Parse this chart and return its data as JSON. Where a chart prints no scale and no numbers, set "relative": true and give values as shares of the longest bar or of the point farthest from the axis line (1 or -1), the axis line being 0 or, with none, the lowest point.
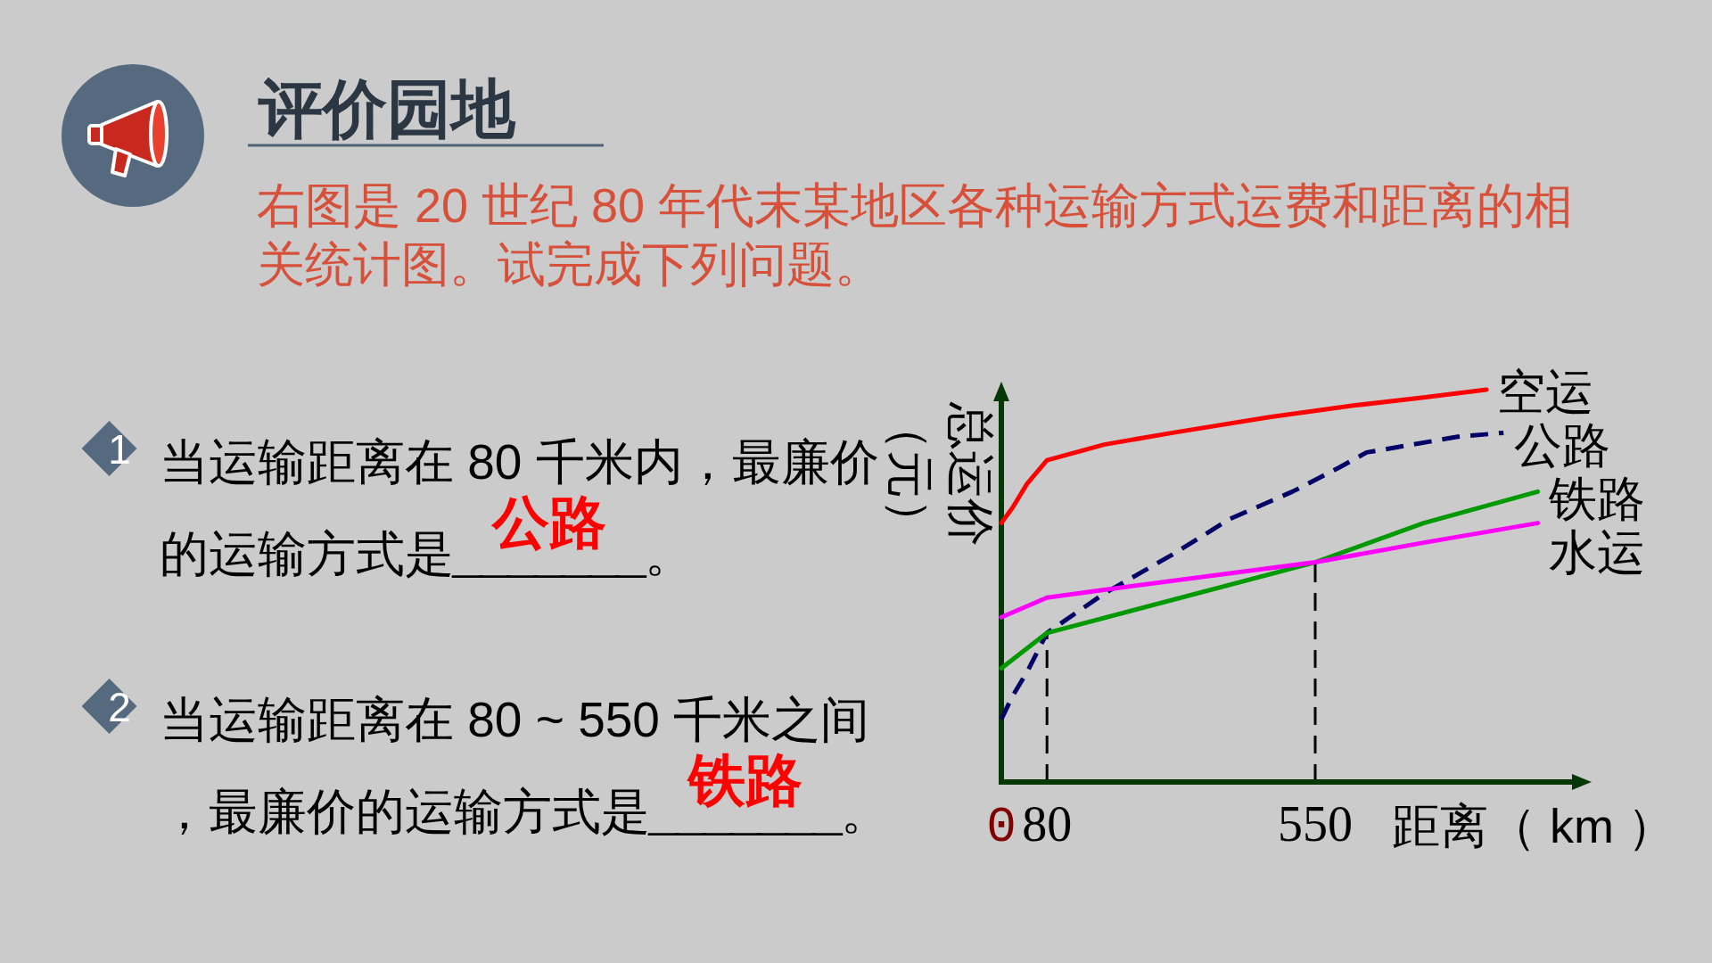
{
  "chart_data": {
    "type": "line",
    "title": "评价园地",
    "subtitle": "右图是 20 世纪 80 年代末某地区各种运输方式运费和距离的相关统计图。试完成下列问题。",
    "xlabel": "距离（ km ）",
    "ylabel": "总运价（元）",
    "relative": true,
    "xlim": [
      0,
      1000
    ],
    "xticks": [
      0,
      80,
      550
    ],
    "line_style": "solid",
    "series": [
      {
        "name": "空运",
        "color": "#ff0000",
        "x": [
          0,
          20,
          45,
          80,
          180,
          300,
          470,
          620,
          740,
          850
        ],
        "values": [
          0.66,
          0.7,
          0.76,
          0.82,
          0.86,
          0.89,
          0.93,
          0.96,
          0.98,
          1.0
        ]
      },
      {
        "name": "公路",
        "color": "#000066",
        "line_style": "dashed",
        "x": [
          0,
          20,
          45,
          80,
          180,
          300,
          400,
          510,
          590,
          640,
          720,
          800,
          880
        ],
        "values": [
          0.16,
          0.22,
          0.28,
          0.38,
          0.48,
          0.58,
          0.67,
          0.74,
          0.8,
          0.84,
          0.86,
          0.88,
          0.89
        ]
      },
      {
        "name": "铁路",
        "color": "#009900",
        "x": [
          0,
          80,
          550,
          740,
          940
        ],
        "values": [
          0.29,
          0.38,
          0.56,
          0.66,
          0.74
        ]
      },
      {
        "name": "水运",
        "color": "#ff00ff",
        "x": [
          0,
          80,
          180,
          550,
          740,
          940
        ],
        "values": [
          0.42,
          0.47,
          0.49,
          0.56,
          0.61,
          0.66
        ]
      }
    ],
    "ref_lines": [
      {
        "axis": "x",
        "value": 80,
        "color": "#000000",
        "line_style": "dashed"
      },
      {
        "axis": "x",
        "value": 550,
        "color": "#000000",
        "line_style": "dashed"
      }
    ],
    "annotations": [
      "1",
      "当运输距离在 80 千米内，最廉价的运输方式是_______。",
      "公路",
      "2",
      "当运输距离在 80 ~ 550 千米之间，最廉价的运输方式是_______。",
      "铁路"
    ]
  }
}
